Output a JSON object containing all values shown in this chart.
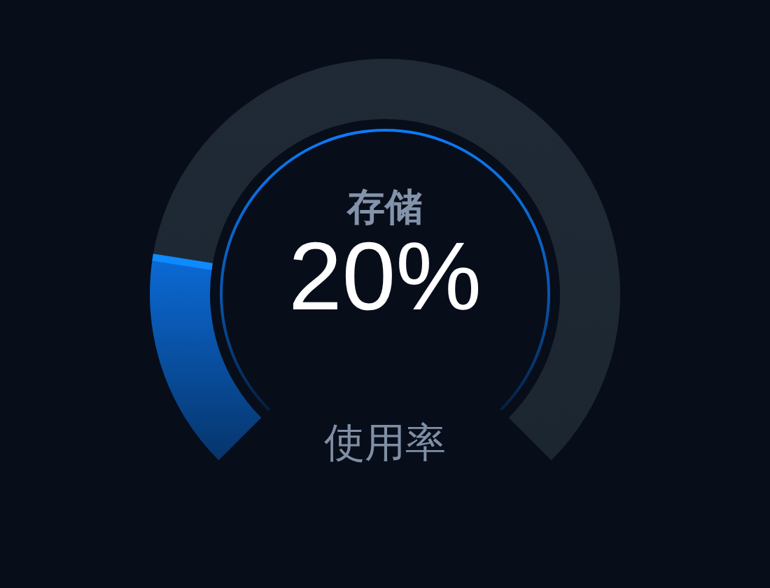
{
  "chart_data": {
    "type": "donut",
    "categories": [
      "存储",
      null
    ],
    "values": [
      20,
      80
    ],
    "colors": [
      "#0b6ad6",
      "#1f2a36"
    ],
    "value_labels": [
      "20%",
      null
    ],
    "annotations": [
      "使用率"
    ]
  }
}
